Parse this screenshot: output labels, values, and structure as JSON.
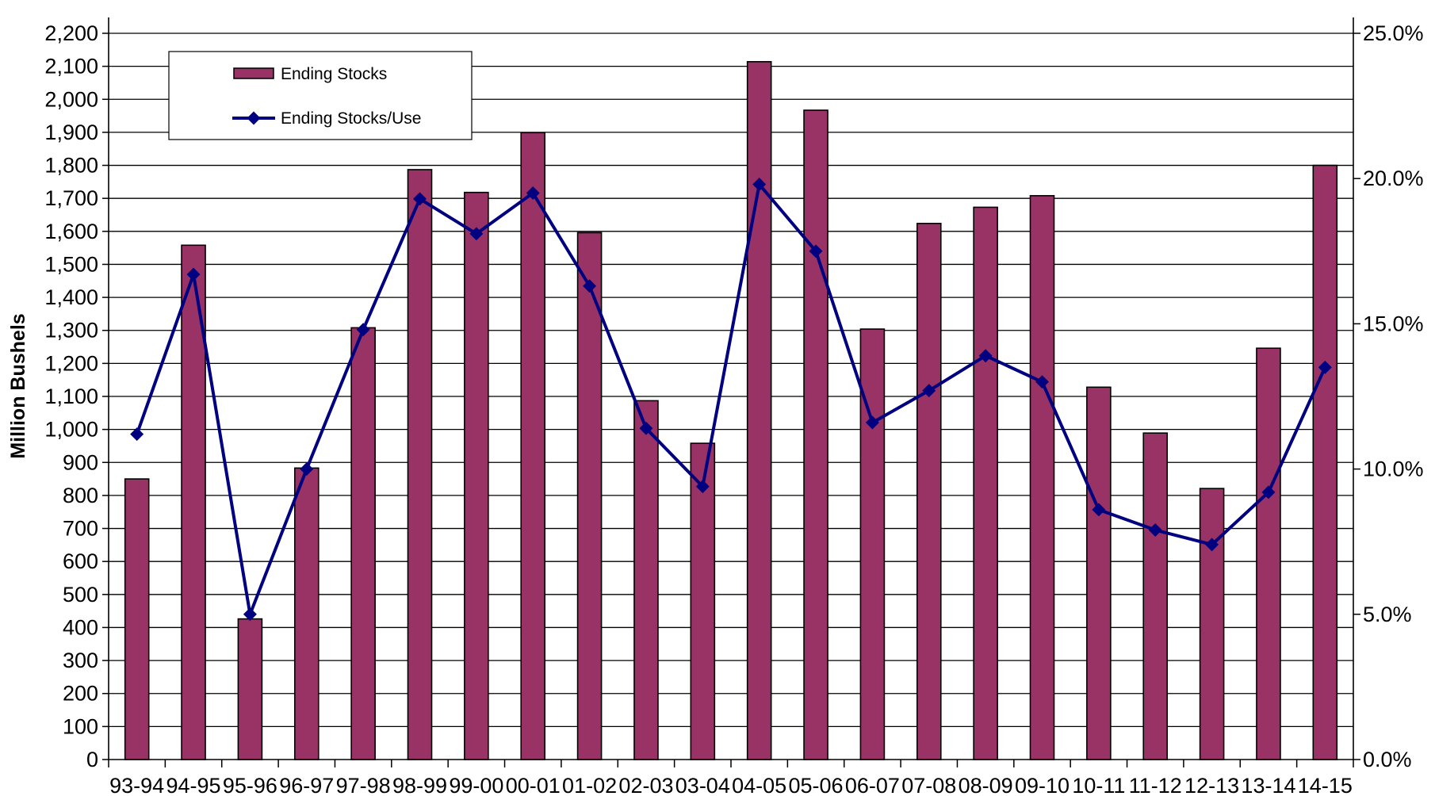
{
  "chart_data": {
    "type": "bar",
    "title": "",
    "xlabel": "",
    "ylabel": "Million Bushels",
    "categories": [
      "93-94",
      "94-95",
      "95-96",
      "96-97",
      "97-98",
      "98-99",
      "99-00",
      "00-01",
      "01-02",
      "02-03",
      "03-04",
      "04-05",
      "05-06",
      "06-07",
      "07-08",
      "08-09",
      "09-10",
      "10-11",
      "11-12",
      "12-13",
      "13-14",
      "14-15"
    ],
    "ylim": [
      0,
      2200
    ],
    "y_ticks": [
      "0",
      "100",
      "200",
      "300",
      "400",
      "500",
      "600",
      "700",
      "800",
      "900",
      "1,000",
      "1,100",
      "1,200",
      "1,300",
      "1,400",
      "1,500",
      "1,600",
      "1,700",
      "1,800",
      "1,900",
      "2,000",
      "2,100",
      "2,200"
    ],
    "y2lim": [
      0,
      25
    ],
    "y2_ticks": [
      "0.0%",
      "5.0%",
      "10.0%",
      "15.0%",
      "20.0%",
      "25.0%"
    ],
    "grid": true,
    "legend_placement": "top-left",
    "series": [
      {
        "name": "Ending Stocks",
        "type": "bar",
        "axis": "left",
        "color": "#993366",
        "values": [
          850,
          1558,
          426,
          883,
          1308,
          1787,
          1718,
          1899,
          1596,
          1087,
          958,
          2114,
          1967,
          1304,
          1624,
          1673,
          1708,
          1128,
          989,
          821,
          1246,
          1800
        ]
      },
      {
        "name": "Ending Stocks/Use",
        "type": "line",
        "axis": "right",
        "color": "#000080",
        "values": [
          11.2,
          16.7,
          5.0,
          10.0,
          14.8,
          19.3,
          18.1,
          19.5,
          16.3,
          11.4,
          9.4,
          19.8,
          17.5,
          11.6,
          12.7,
          13.9,
          13.0,
          8.6,
          7.9,
          7.4,
          9.2,
          13.5
        ]
      }
    ]
  }
}
